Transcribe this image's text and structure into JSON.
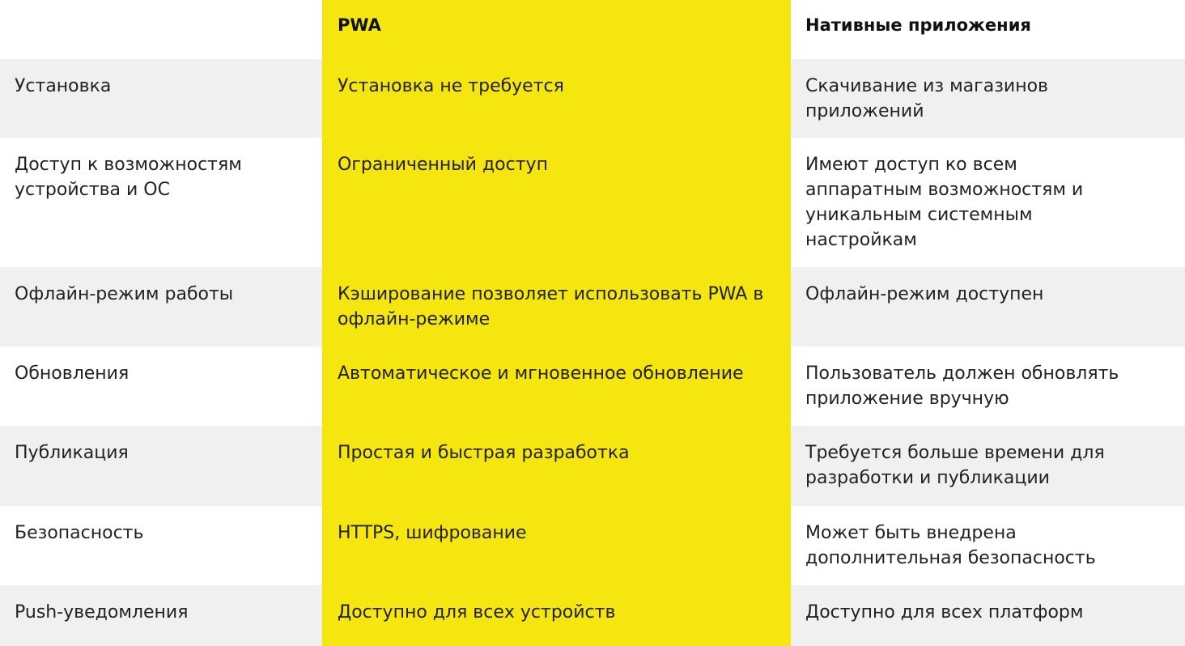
{
  "table": {
    "header": [
      "PWA",
      "Нативные приложения"
    ],
    "rows": [
      [
        "Установка",
        "Установка не требуется",
        "Скачивание из магазинов приложений"
      ],
      [
        "Доступ к возможностям устройства и ОС",
        "Ограниченный доступ",
        "Имеют доступ ко всем аппаратным возможностям и уникальным системным настройкам"
      ],
      [
        "Офлайн-режим работы",
        "Кэширование позволяет использовать PWA в офлайн-режиме",
        "Офлайн-режим доступен"
      ],
      [
        "Обновления",
        "Автоматическое и мгновенное обновление",
        "Пользователь должен обновлять приложение вручную"
      ],
      [
        "Публикация",
        "Простая и быстрая разработка",
        "Требуется больше времени для разработки и публикации"
      ],
      [
        "Безопасность",
        "HTTPS, шифрование",
        "Может быть внедрена дополнительная безопасность"
      ],
      [
        "Push-уведомления",
        "Доступно для всех устройств",
        "Доступно для всех платформ"
      ]
    ]
  }
}
